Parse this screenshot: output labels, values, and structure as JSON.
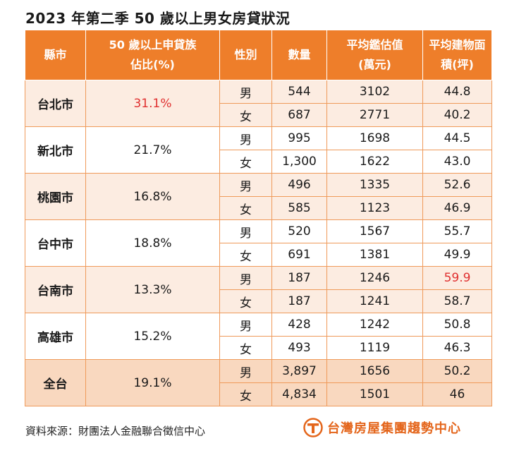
{
  "title": "2023 年第二季 50 歲以上男女房貸狀況",
  "table": {
    "headers": {
      "city": "縣市",
      "share_line1": "50 歲以上申貸族",
      "share_line2": "佔比(%)",
      "gender": "性別",
      "count": "數量",
      "value_line1": "平均鑑估值",
      "value_line2": "(萬元)",
      "area_line1": "平均建物面",
      "area_line2": "積(坪)"
    },
    "groups": [
      {
        "city": "台北市",
        "share": "31.1%",
        "share_highlight": true,
        "tone": "tint",
        "rows": [
          {
            "gender": "男",
            "count": "544",
            "value": "3102",
            "area": "44.8",
            "area_highlight": false
          },
          {
            "gender": "女",
            "count": "687",
            "value": "2771",
            "area": "40.2",
            "area_highlight": false
          }
        ]
      },
      {
        "city": "新北市",
        "share": "21.7%",
        "share_highlight": false,
        "tone": "white",
        "rows": [
          {
            "gender": "男",
            "count": "995",
            "value": "1698",
            "area": "44.5",
            "area_highlight": false
          },
          {
            "gender": "女",
            "count": "1,300",
            "value": "1622",
            "area": "43.0",
            "area_highlight": false
          }
        ]
      },
      {
        "city": "桃園市",
        "share": "16.8%",
        "share_highlight": false,
        "tone": "tint",
        "rows": [
          {
            "gender": "男",
            "count": "496",
            "value": "1335",
            "area": "52.6",
            "area_highlight": false
          },
          {
            "gender": "女",
            "count": "585",
            "value": "1123",
            "area": "46.9",
            "area_highlight": false
          }
        ]
      },
      {
        "city": "台中市",
        "share": "18.8%",
        "share_highlight": false,
        "tone": "white",
        "rows": [
          {
            "gender": "男",
            "count": "520",
            "value": "1567",
            "area": "55.7",
            "area_highlight": false
          },
          {
            "gender": "女",
            "count": "691",
            "value": "1381",
            "area": "49.9",
            "area_highlight": false
          }
        ]
      },
      {
        "city": "台南市",
        "share": "13.3%",
        "share_highlight": false,
        "tone": "tint",
        "rows": [
          {
            "gender": "男",
            "count": "187",
            "value": "1246",
            "area": "59.9",
            "area_highlight": true
          },
          {
            "gender": "女",
            "count": "187",
            "value": "1241",
            "area": "58.7",
            "area_highlight": false
          }
        ]
      },
      {
        "city": "高雄市",
        "share": "15.2%",
        "share_highlight": false,
        "tone": "white",
        "rows": [
          {
            "gender": "男",
            "count": "428",
            "value": "1242",
            "area": "50.8",
            "area_highlight": false
          },
          {
            "gender": "女",
            "count": "493",
            "value": "1119",
            "area": "46.3",
            "area_highlight": false
          }
        ]
      },
      {
        "city": "全台",
        "share": "19.1%",
        "share_highlight": false,
        "tone": "total",
        "rows": [
          {
            "gender": "男",
            "count": "3,897",
            "value": "1656",
            "area": "50.2",
            "area_highlight": false
          },
          {
            "gender": "女",
            "count": "4,834",
            "value": "1501",
            "area": "46",
            "area_highlight": false
          }
        ]
      }
    ]
  },
  "colors": {
    "header_bg": "#ee7e2a",
    "header_text": "#ffffff",
    "row_tint": "#fcece1",
    "row_total": "#f9d8bf",
    "border": "#ef9a5a",
    "highlight": "#e03030",
    "brand": "#e4661c"
  },
  "footer": {
    "source": "資料來源：財團法人金融聯合徵信中心",
    "logo_text": "台灣房屋集團趨勢中心",
    "logo_icon": "house-t-logo-icon"
  }
}
